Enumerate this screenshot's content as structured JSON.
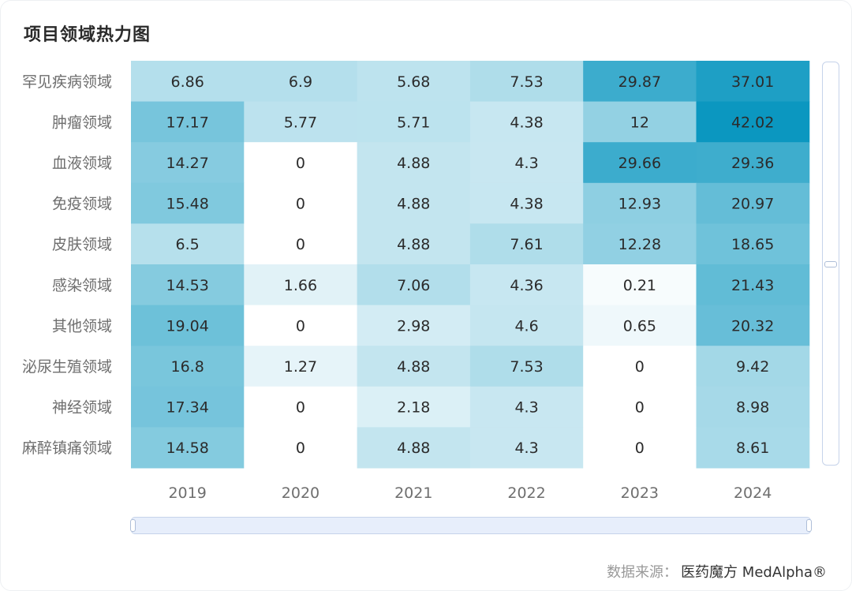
{
  "title": "项目领域热力图",
  "source_label": "数据来源：",
  "source_value": "医药魔方 MedAlpha®",
  "chart_data": {
    "type": "heatmap",
    "title": "项目领域热力图",
    "x_categories": [
      "2019",
      "2020",
      "2021",
      "2022",
      "2023",
      "2024"
    ],
    "y_categories": [
      "罕见疾病领域",
      "肿瘤领域",
      "血液领域",
      "免疫领域",
      "皮肤领域",
      "感染领域",
      "其他领域",
      "泌尿生殖领域",
      "神经领域",
      "麻醉镇痛领域"
    ],
    "values": [
      [
        6.86,
        6.9,
        5.68,
        7.53,
        29.87,
        37.01
      ],
      [
        17.17,
        5.77,
        5.71,
        4.38,
        12,
        42.02
      ],
      [
        14.27,
        0,
        4.88,
        4.3,
        29.66,
        29.36
      ],
      [
        15.48,
        0,
        4.88,
        4.38,
        12.93,
        20.97
      ],
      [
        6.5,
        0,
        4.88,
        7.61,
        12.28,
        18.65
      ],
      [
        14.53,
        1.66,
        7.06,
        4.36,
        0.21,
        21.43
      ],
      [
        19.04,
        0,
        2.98,
        4.6,
        0.65,
        20.32
      ],
      [
        16.8,
        1.27,
        4.88,
        7.53,
        0,
        9.42
      ],
      [
        17.34,
        0,
        2.18,
        4.3,
        0,
        8.98
      ],
      [
        14.58,
        0,
        4.88,
        4.3,
        0,
        8.61
      ]
    ],
    "color_low": "#ffffff",
    "color_high": "#0b97c0",
    "value_range": [
      0,
      42.02
    ]
  }
}
